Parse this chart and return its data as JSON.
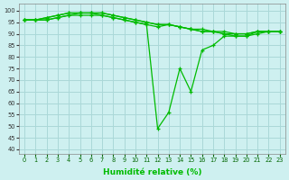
{
  "title": "",
  "xlabel": "Humidité relative (%)",
  "ylabel": "",
  "background_color": "#cef0f0",
  "grid_color": "#aad8d8",
  "line_color": "#00bb00",
  "xlim": [
    -0.5,
    23.5
  ],
  "ylim": [
    38,
    103
  ],
  "yticks": [
    40,
    45,
    50,
    55,
    60,
    65,
    70,
    75,
    80,
    85,
    90,
    95,
    100
  ],
  "xticks": [
    0,
    1,
    2,
    3,
    4,
    5,
    6,
    7,
    8,
    9,
    10,
    11,
    12,
    13,
    14,
    15,
    16,
    17,
    18,
    19,
    20,
    21,
    22,
    23
  ],
  "series": [
    [
      96,
      96,
      96,
      97,
      98,
      98,
      98,
      98,
      97,
      96,
      95,
      94,
      49,
      56,
      75,
      65,
      83,
      85,
      89,
      89,
      89,
      91,
      91,
      91
    ],
    [
      96,
      96,
      96,
      97,
      98,
      99,
      99,
      98,
      97,
      96,
      95,
      94,
      93,
      94,
      93,
      92,
      91,
      91,
      90,
      89,
      89,
      90,
      91,
      91
    ],
    [
      96,
      96,
      97,
      98,
      99,
      99,
      99,
      99,
      98,
      97,
      96,
      95,
      94,
      94,
      93,
      92,
      91,
      91,
      90,
      90,
      90,
      91,
      91,
      91
    ],
    [
      96,
      96,
      97,
      98,
      99,
      99,
      99,
      99,
      98,
      97,
      96,
      95,
      94,
      94,
      93,
      92,
      92,
      91,
      91,
      90,
      90,
      91,
      91,
      91
    ]
  ]
}
